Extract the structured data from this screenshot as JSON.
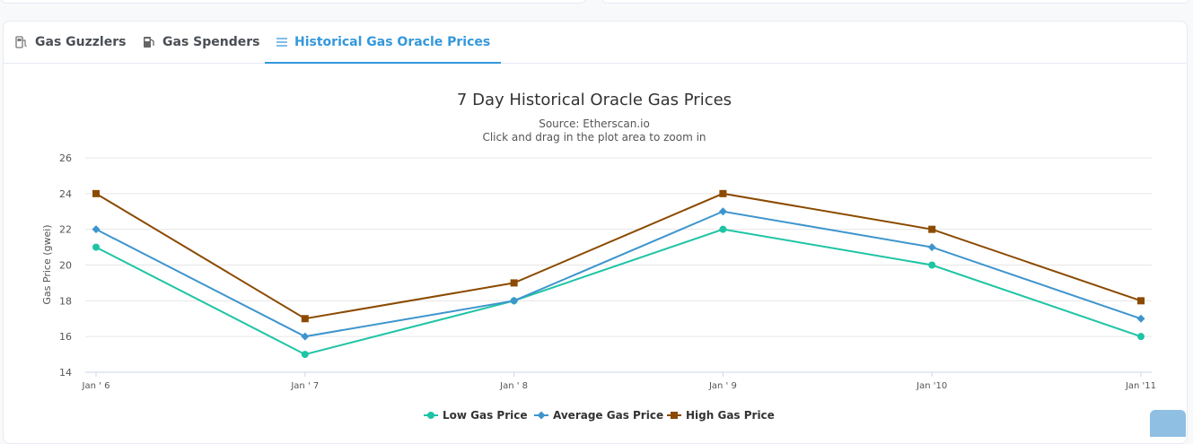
{
  "tabs": [
    {
      "label": "Gas Guzzlers",
      "icon": "gas-pump-icon",
      "active": false
    },
    {
      "label": "Gas Spenders",
      "icon": "gas-station-icon",
      "active": false
    },
    {
      "label": "Historical Gas Oracle Prices",
      "icon": "list-icon",
      "active": true
    }
  ],
  "colors": {
    "accent": "#3498db",
    "low": "#1ec4a4",
    "average": "#3e95cd",
    "high": "#8b4a00"
  },
  "chart_data": {
    "type": "line",
    "title": "7 Day Historical Oracle Gas Prices",
    "subtitle_source": "Source: Etherscan.io",
    "subtitle_hint": "Click and drag in the plot area to zoom in",
    "ylabel": "Gas Price (gwei)",
    "xlabel": "",
    "categories": [
      "Jan ' 6",
      "Jan ' 7",
      "Jan ' 8",
      "Jan ' 9",
      "Jan '10",
      "Jan '11"
    ],
    "ylim": [
      14,
      26
    ],
    "yticks": [
      14,
      16,
      18,
      20,
      22,
      24,
      26
    ],
    "grid": true,
    "legend_position": "bottom-center",
    "series": [
      {
        "name": "Low Gas Price",
        "marker": "circle",
        "values": [
          21,
          15,
          18,
          22,
          20,
          16
        ]
      },
      {
        "name": "Average Gas Price",
        "marker": "diamond",
        "values": [
          22,
          16,
          18,
          23,
          21,
          17
        ]
      },
      {
        "name": "High Gas Price",
        "marker": "square",
        "values": [
          24,
          17,
          19,
          24,
          22,
          18
        ]
      }
    ]
  }
}
